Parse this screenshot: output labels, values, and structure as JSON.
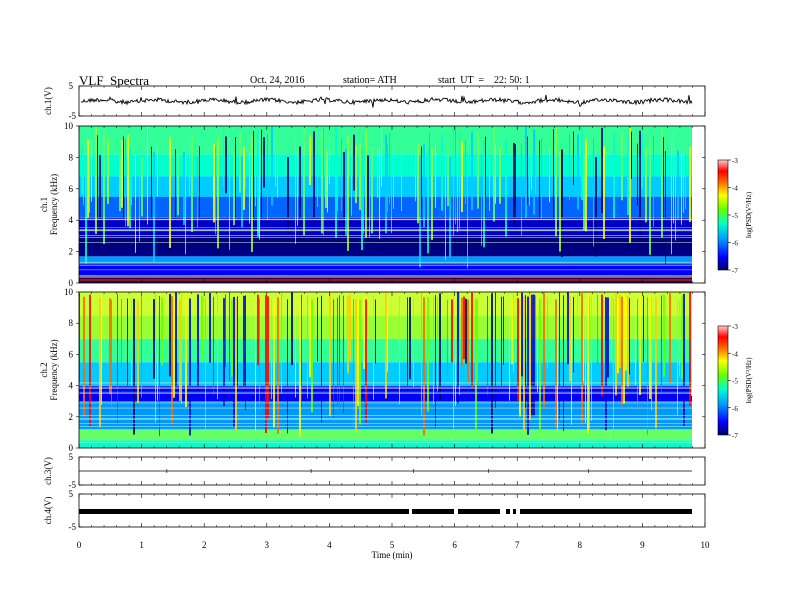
{
  "header": {
    "title": "VLF  Spectra",
    "date": "Oct. 24, 2016",
    "station": "station= ATH",
    "start": "start  UT  =    22: 50: 1"
  },
  "chart_data": [
    {
      "type": "line",
      "title": "",
      "ylabel": "ch.1(V)",
      "ylim": [
        -5,
        5
      ],
      "yticks": [
        "5",
        "-5"
      ],
      "xlim": [
        0,
        10
      ],
      "note_series": "waveform approx. constant near 0 V with small spikes"
    },
    {
      "type": "heatmap",
      "ylabel": "ch.1\nFrequency  (kHz)",
      "ylim": [
        0,
        10
      ],
      "yticks": [
        "0",
        "2",
        "4",
        "6",
        "8",
        "10"
      ],
      "xlim": [
        0,
        9.8
      ],
      "colorbar": {
        "label": "log(PSD(V²/Hz)",
        "range": [
          -7,
          -3
        ],
        "ticks": [
          "-3",
          "-4",
          "-5",
          "-6",
          "-7"
        ]
      }
    },
    {
      "type": "heatmap",
      "ylabel": "ch.2\nFrequency  (kHz)",
      "ylim": [
        0,
        10
      ],
      "yticks": [
        "0",
        "2",
        "4",
        "6",
        "8",
        "10"
      ],
      "xlim": [
        0,
        9.8
      ],
      "colorbar": {
        "label": "log(PSD(V²/Hz)",
        "range": [
          -7,
          -3
        ],
        "ticks": [
          "-3",
          "-4",
          "-5",
          "-6",
          "-7"
        ]
      }
    },
    {
      "type": "line",
      "ylabel": "ch.3(V)",
      "ylim": [
        -5,
        5
      ],
      "yticks": [
        "5",
        "-5"
      ],
      "xlim": [
        0,
        10
      ]
    },
    {
      "type": "line",
      "ylabel": "ch.4(V)",
      "ylim": [
        -5,
        5
      ],
      "yticks": [
        "5",
        "-5"
      ],
      "xlim": [
        0,
        10
      ],
      "xlabel": "Time  (min)",
      "xticks": [
        "0",
        "1",
        "2",
        "3",
        "4",
        "5",
        "6",
        "7",
        "8",
        "9",
        "10"
      ]
    }
  ],
  "colors": {
    "colormap": [
      "#000066",
      "#0000ff",
      "#0099ff",
      "#00ffcc",
      "#66ff00",
      "#ffff00",
      "#ff6600",
      "#ff0000",
      "#ffcccc"
    ]
  }
}
